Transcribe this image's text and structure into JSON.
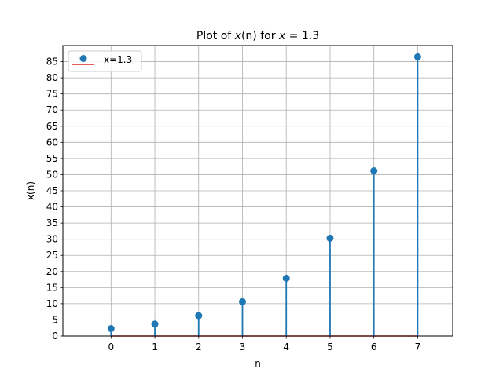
{
  "chart_data": {
    "type": "stem",
    "title": {
      "prefix": "Plot of ",
      "math_var": "x",
      "math_arg": "(n)",
      "middle": " for ",
      "math_x": "x",
      "eq": " = 1.3"
    },
    "xlabel": "n",
    "ylabel": "x(n)",
    "x": [
      0,
      1,
      2,
      3,
      4,
      5,
      6,
      7
    ],
    "values": [
      2.3,
      3.7,
      6.3,
      10.6,
      17.9,
      30.3,
      51.2,
      86.5
    ],
    "xlim": [
      -1.1,
      7.8
    ],
    "ylim": [
      0,
      90
    ],
    "xticks": [
      "0",
      "1",
      "2",
      "3",
      "4",
      "5",
      "6",
      "7"
    ],
    "yticks": [
      "0",
      "5",
      "10",
      "15",
      "20",
      "25",
      "30",
      "35",
      "40",
      "45",
      "50",
      "55",
      "60",
      "65",
      "70",
      "75",
      "80",
      "85"
    ],
    "grid": true,
    "legend": {
      "position": "top-left",
      "entries": [
        "x=1.3"
      ]
    },
    "colors": {
      "stem": "#1f77b4",
      "baseline": "#d62728",
      "grid": "#b0b0b0"
    }
  }
}
